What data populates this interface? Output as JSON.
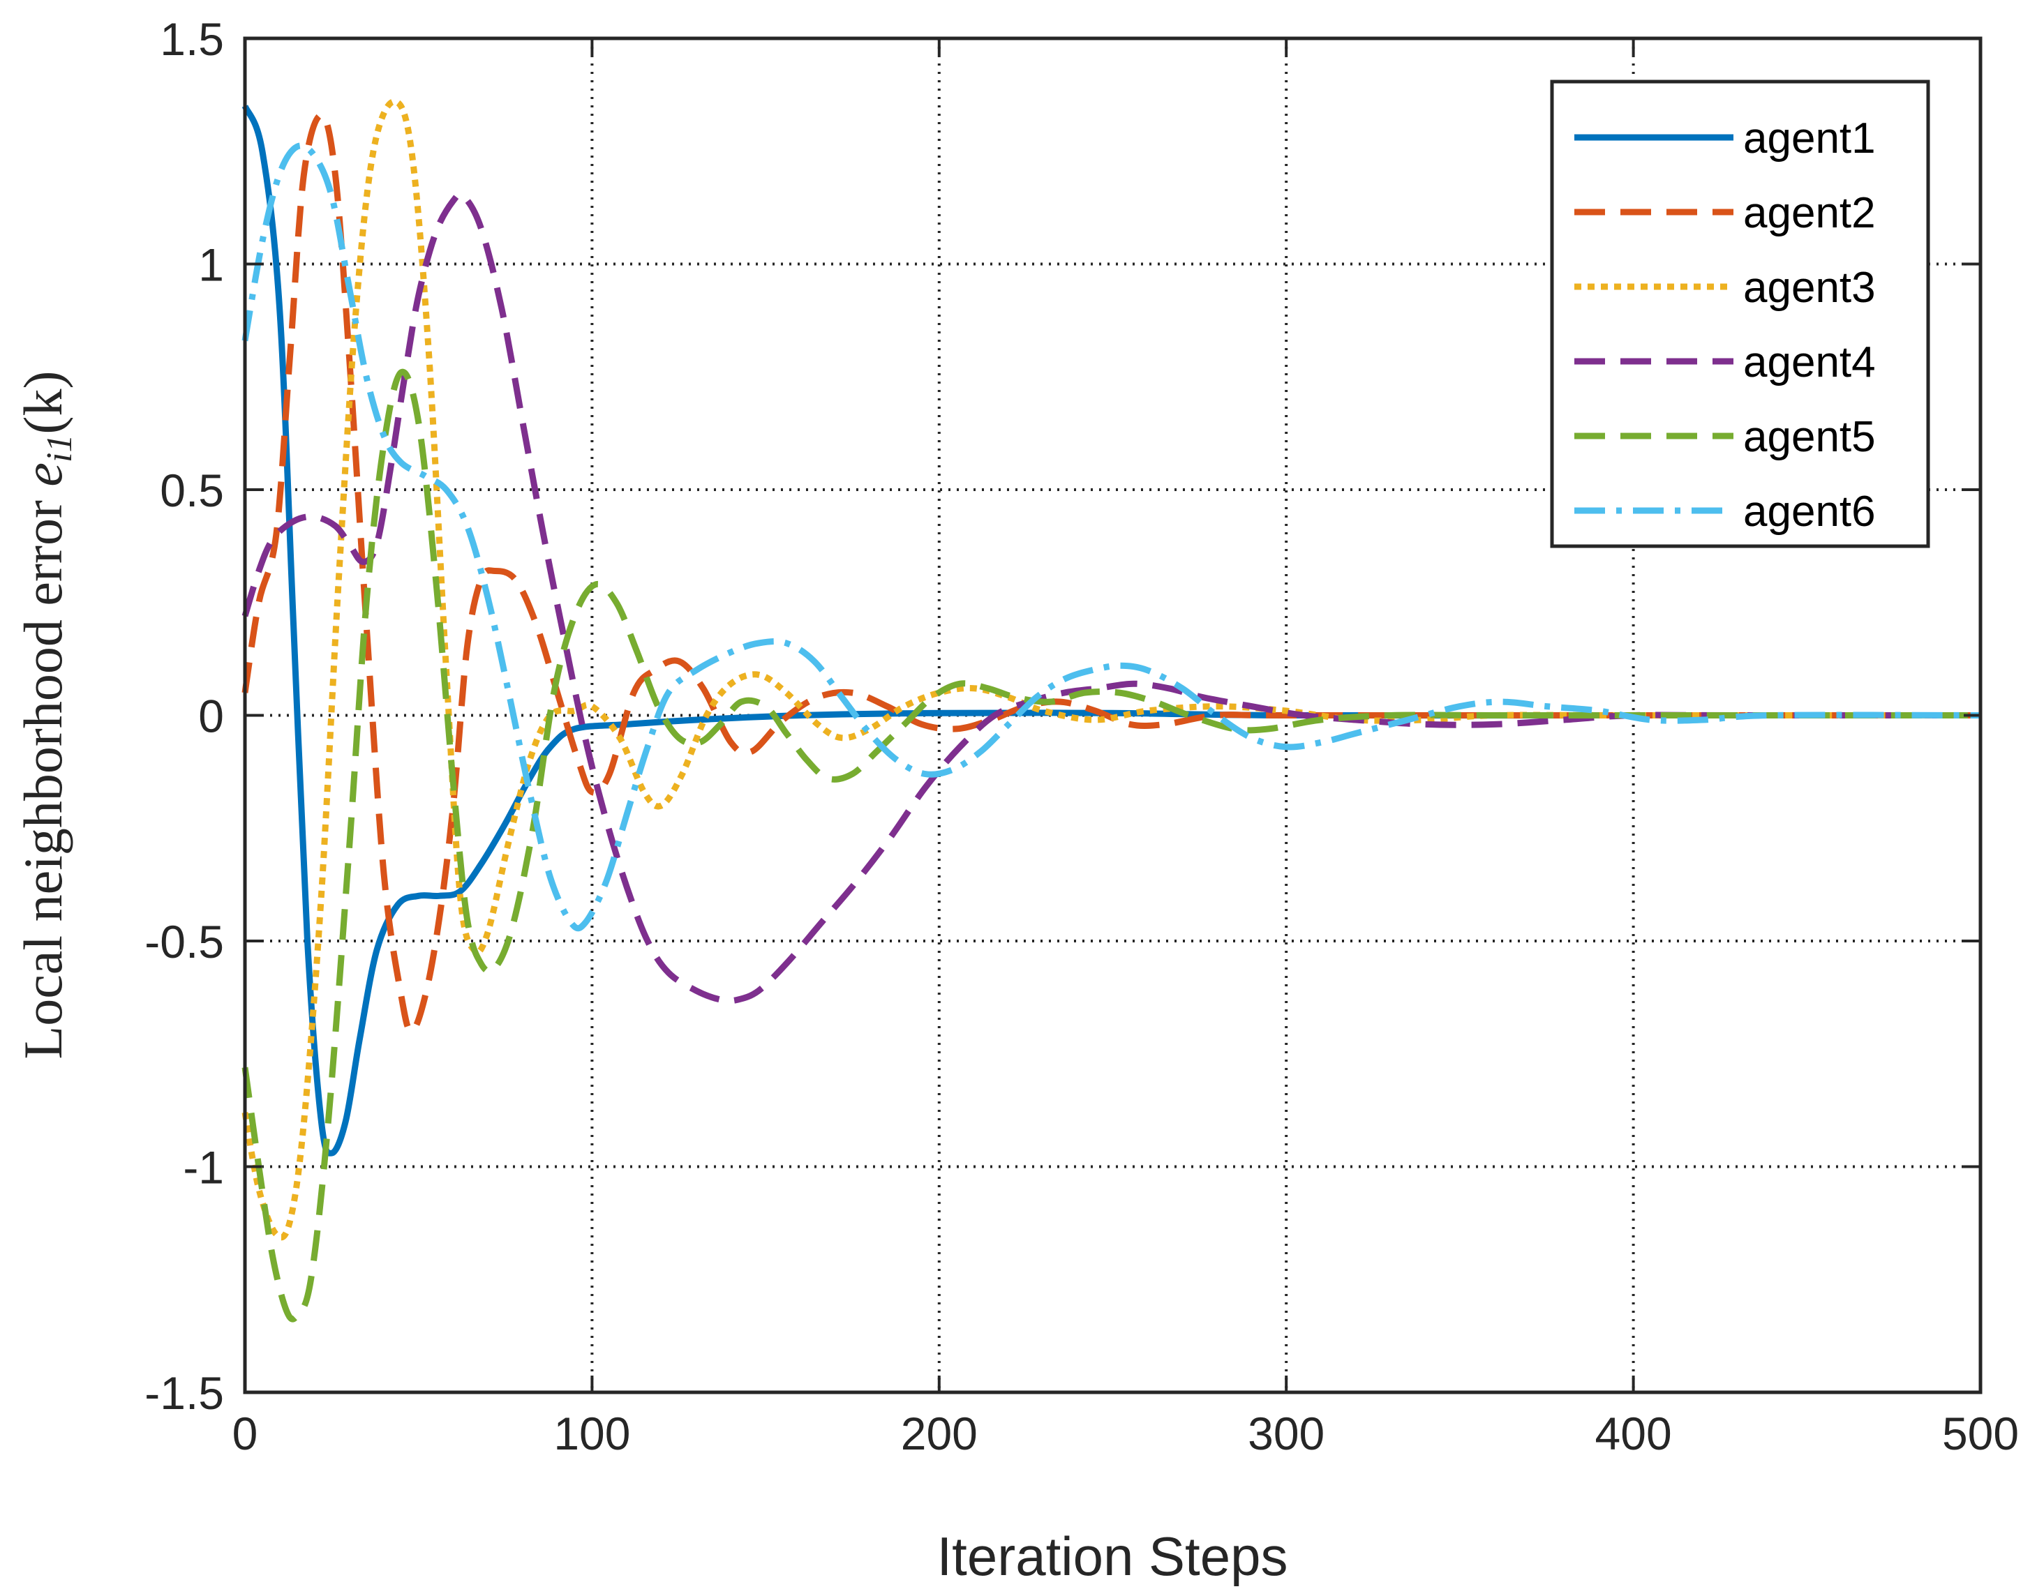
{
  "chart_data": {
    "type": "line",
    "title": "",
    "xlabel": "Iteration Steps",
    "ylabel": {
      "text": "Local neighborhood error ",
      "math_var": "e",
      "math_sub": "i1",
      "math_arg": "(k)"
    },
    "xlim": [
      0,
      500
    ],
    "ylim": [
      -1.5,
      1.5
    ],
    "xticks": [
      0,
      100,
      200,
      300,
      400,
      500
    ],
    "xtick_labels": [
      "0",
      "100",
      "200",
      "300",
      "400",
      "500"
    ],
    "yticks": [
      1.5,
      1,
      0.5,
      0,
      -0.5,
      -1,
      -1.5
    ],
    "ytick_labels": [
      "1.5",
      "1",
      "0.5",
      "0",
      "-0.5",
      "-1",
      "-1.5"
    ],
    "grid": true,
    "legend_position": "top-right",
    "series": [
      {
        "name": "agent1",
        "color": "#0072BD",
        "style": "solid",
        "points": [
          [
            0,
            1.35
          ],
          [
            5,
            1.25
          ],
          [
            10,
            0.9
          ],
          [
            14,
            0.2
          ],
          [
            18,
            -0.5
          ],
          [
            22,
            -0.9
          ],
          [
            25,
            -0.97
          ],
          [
            29,
            -0.9
          ],
          [
            33,
            -0.72
          ],
          [
            38,
            -0.52
          ],
          [
            44,
            -0.42
          ],
          [
            50,
            -0.4
          ],
          [
            56,
            -0.4
          ],
          [
            62,
            -0.39
          ],
          [
            68,
            -0.33
          ],
          [
            75,
            -0.24
          ],
          [
            82,
            -0.14
          ],
          [
            88,
            -0.07
          ],
          [
            95,
            -0.03
          ],
          [
            110,
            -0.02
          ],
          [
            130,
            -0.01
          ],
          [
            160,
            0
          ],
          [
            200,
            0.005
          ],
          [
            250,
            0.005
          ],
          [
            300,
            0
          ],
          [
            400,
            0
          ],
          [
            500,
            0
          ]
        ]
      },
      {
        "name": "agent2",
        "color": "#D95319",
        "style": "dashed",
        "points": [
          [
            0,
            0.05
          ],
          [
            4,
            0.25
          ],
          [
            9,
            0.4
          ],
          [
            13,
            0.8
          ],
          [
            17,
            1.2
          ],
          [
            22,
            1.33
          ],
          [
            26,
            1.2
          ],
          [
            30,
            0.8
          ],
          [
            35,
            0.2
          ],
          [
            40,
            -0.35
          ],
          [
            45,
            -0.62
          ],
          [
            48,
            -0.7
          ],
          [
            52,
            -0.62
          ],
          [
            56,
            -0.45
          ],
          [
            60,
            -0.2
          ],
          [
            64,
            0.15
          ],
          [
            68,
            0.3
          ],
          [
            72,
            0.32
          ],
          [
            78,
            0.3
          ],
          [
            84,
            0.2
          ],
          [
            90,
            0.05
          ],
          [
            96,
            -0.1
          ],
          [
            100,
            -0.17
          ],
          [
            105,
            -0.13
          ],
          [
            112,
            0.05
          ],
          [
            118,
            0.1
          ],
          [
            125,
            0.12
          ],
          [
            132,
            0.06
          ],
          [
            140,
            -0.06
          ],
          [
            146,
            -0.08
          ],
          [
            155,
            -0.01
          ],
          [
            165,
            0.04
          ],
          [
            175,
            0.05
          ],
          [
            185,
            0.02
          ],
          [
            195,
            -0.02
          ],
          [
            205,
            -0.03
          ],
          [
            215,
            -0.01
          ],
          [
            225,
            0.02
          ],
          [
            235,
            0.03
          ],
          [
            245,
            0.01
          ],
          [
            255,
            -0.02
          ],
          [
            265,
            -0.02
          ],
          [
            280,
            0
          ],
          [
            300,
            0
          ],
          [
            400,
            0
          ],
          [
            500,
            0
          ]
        ]
      },
      {
        "name": "agent3",
        "color": "#EDB120",
        "style": "dotted",
        "points": [
          [
            0,
            -0.88
          ],
          [
            4,
            -1.05
          ],
          [
            9,
            -1.15
          ],
          [
            13,
            -1.12
          ],
          [
            17,
            -0.9
          ],
          [
            22,
            -0.4
          ],
          [
            27,
            0.3
          ],
          [
            32,
            0.9
          ],
          [
            37,
            1.25
          ],
          [
            43,
            1.36
          ],
          [
            48,
            1.25
          ],
          [
            53,
            0.8
          ],
          [
            58,
            0.1
          ],
          [
            62,
            -0.4
          ],
          [
            66,
            -0.52
          ],
          [
            70,
            -0.48
          ],
          [
            76,
            -0.28
          ],
          [
            82,
            -0.1
          ],
          [
            88,
            0
          ],
          [
            95,
            0.01
          ],
          [
            100,
            0.02
          ],
          [
            108,
            -0.05
          ],
          [
            115,
            -0.17
          ],
          [
            120,
            -0.2
          ],
          [
            126,
            -0.13
          ],
          [
            133,
            0
          ],
          [
            140,
            0.07
          ],
          [
            148,
            0.09
          ],
          [
            156,
            0.05
          ],
          [
            165,
            -0.02
          ],
          [
            172,
            -0.05
          ],
          [
            180,
            -0.03
          ],
          [
            190,
            0.02
          ],
          [
            200,
            0.05
          ],
          [
            210,
            0.06
          ],
          [
            220,
            0.04
          ],
          [
            230,
            0.01
          ],
          [
            245,
            -0.01
          ],
          [
            260,
            0.01
          ],
          [
            280,
            0.02
          ],
          [
            300,
            0.01
          ],
          [
            320,
            -0.01
          ],
          [
            340,
            -0.01
          ],
          [
            360,
            0
          ],
          [
            400,
            0
          ],
          [
            500,
            0
          ]
        ]
      },
      {
        "name": "agent4",
        "color": "#7E2F8E",
        "style": "dashed",
        "points": [
          [
            0,
            0.22
          ],
          [
            4,
            0.32
          ],
          [
            8,
            0.39
          ],
          [
            14,
            0.43
          ],
          [
            20,
            0.44
          ],
          [
            26,
            0.42
          ],
          [
            30,
            0.38
          ],
          [
            34,
            0.34
          ],
          [
            38,
            0.38
          ],
          [
            42,
            0.55
          ],
          [
            46,
            0.75
          ],
          [
            50,
            0.93
          ],
          [
            55,
            1.07
          ],
          [
            60,
            1.14
          ],
          [
            63,
            1.15
          ],
          [
            68,
            1.08
          ],
          [
            74,
            0.9
          ],
          [
            80,
            0.65
          ],
          [
            86,
            0.4
          ],
          [
            92,
            0.17
          ],
          [
            98,
            -0.05
          ],
          [
            104,
            -0.23
          ],
          [
            110,
            -0.38
          ],
          [
            116,
            -0.5
          ],
          [
            122,
            -0.57
          ],
          [
            130,
            -0.61
          ],
          [
            137,
            -0.63
          ],
          [
            142,
            -0.63
          ],
          [
            148,
            -0.61
          ],
          [
            156,
            -0.55
          ],
          [
            166,
            -0.46
          ],
          [
            176,
            -0.37
          ],
          [
            186,
            -0.27
          ],
          [
            196,
            -0.16
          ],
          [
            206,
            -0.07
          ],
          [
            216,
            0
          ],
          [
            226,
            0.03
          ],
          [
            236,
            0.05
          ],
          [
            246,
            0.06
          ],
          [
            256,
            0.07
          ],
          [
            266,
            0.06
          ],
          [
            276,
            0.04
          ],
          [
            290,
            0.02
          ],
          [
            305,
            0
          ],
          [
            320,
            -0.01
          ],
          [
            340,
            -0.02
          ],
          [
            360,
            -0.02
          ],
          [
            380,
            -0.01
          ],
          [
            400,
            0
          ],
          [
            430,
            0
          ],
          [
            500,
            0
          ]
        ]
      },
      {
        "name": "agent5",
        "color": "#77AC30",
        "style": "dashed",
        "points": [
          [
            0,
            -0.78
          ],
          [
            4,
            -1.0
          ],
          [
            8,
            -1.2
          ],
          [
            12,
            -1.32
          ],
          [
            15,
            -1.33
          ],
          [
            19,
            -1.25
          ],
          [
            24,
            -0.9
          ],
          [
            30,
            -0.3
          ],
          [
            35,
            0.25
          ],
          [
            40,
            0.6
          ],
          [
            45,
            0.76
          ],
          [
            50,
            0.65
          ],
          [
            55,
            0.3
          ],
          [
            60,
            -0.15
          ],
          [
            64,
            -0.45
          ],
          [
            68,
            -0.55
          ],
          [
            72,
            -0.56
          ],
          [
            77,
            -0.47
          ],
          [
            83,
            -0.25
          ],
          [
            89,
            0.05
          ],
          [
            95,
            0.22
          ],
          [
            101,
            0.29
          ],
          [
            107,
            0.25
          ],
          [
            113,
            0.14
          ],
          [
            119,
            0.02
          ],
          [
            125,
            -0.05
          ],
          [
            131,
            -0.06
          ],
          [
            137,
            -0.02
          ],
          [
            143,
            0.03
          ],
          [
            150,
            0.02
          ],
          [
            156,
            -0.04
          ],
          [
            162,
            -0.1
          ],
          [
            168,
            -0.14
          ],
          [
            175,
            -0.13
          ],
          [
            182,
            -0.08
          ],
          [
            190,
            -0.02
          ],
          [
            198,
            0.04
          ],
          [
            206,
            0.07
          ],
          [
            214,
            0.06
          ],
          [
            222,
            0.04
          ],
          [
            232,
            0.03
          ],
          [
            242,
            0.05
          ],
          [
            252,
            0.05
          ],
          [
            262,
            0.03
          ],
          [
            272,
            0
          ],
          [
            285,
            -0.03
          ],
          [
            295,
            -0.03
          ],
          [
            310,
            -0.01
          ],
          [
            330,
            0
          ],
          [
            360,
            0
          ],
          [
            400,
            0
          ],
          [
            500,
            0
          ]
        ]
      },
      {
        "name": "agent6",
        "color": "#4DBEEE",
        "style": "dashdot",
        "points": [
          [
            0,
            0.83
          ],
          [
            5,
            1.05
          ],
          [
            10,
            1.2
          ],
          [
            15,
            1.26
          ],
          [
            20,
            1.24
          ],
          [
            25,
            1.15
          ],
          [
            30,
            0.95
          ],
          [
            35,
            0.75
          ],
          [
            40,
            0.62
          ],
          [
            45,
            0.56
          ],
          [
            52,
            0.53
          ],
          [
            58,
            0.5
          ],
          [
            64,
            0.42
          ],
          [
            70,
            0.26
          ],
          [
            76,
            0.05
          ],
          [
            82,
            -0.17
          ],
          [
            88,
            -0.36
          ],
          [
            94,
            -0.46
          ],
          [
            98,
            -0.46
          ],
          [
            104,
            -0.37
          ],
          [
            110,
            -0.22
          ],
          [
            116,
            -0.07
          ],
          [
            122,
            0.05
          ],
          [
            130,
            0.1
          ],
          [
            140,
            0.14
          ],
          [
            148,
            0.16
          ],
          [
            156,
            0.16
          ],
          [
            164,
            0.12
          ],
          [
            172,
            0.04
          ],
          [
            180,
            -0.04
          ],
          [
            188,
            -0.1
          ],
          [
            196,
            -0.13
          ],
          [
            204,
            -0.12
          ],
          [
            212,
            -0.08
          ],
          [
            220,
            -0.02
          ],
          [
            228,
            0.04
          ],
          [
            236,
            0.08
          ],
          [
            244,
            0.1
          ],
          [
            252,
            0.11
          ],
          [
            260,
            0.1
          ],
          [
            270,
            0.06
          ],
          [
            280,
            0
          ],
          [
            290,
            -0.05
          ],
          [
            300,
            -0.07
          ],
          [
            310,
            -0.06
          ],
          [
            320,
            -0.04
          ],
          [
            335,
            -0.01
          ],
          [
            350,
            0.02
          ],
          [
            362,
            0.03
          ],
          [
            375,
            0.02
          ],
          [
            390,
            0.01
          ],
          [
            405,
            -0.01
          ],
          [
            420,
            -0.01
          ],
          [
            440,
            0
          ],
          [
            500,
            0
          ]
        ]
      }
    ]
  }
}
